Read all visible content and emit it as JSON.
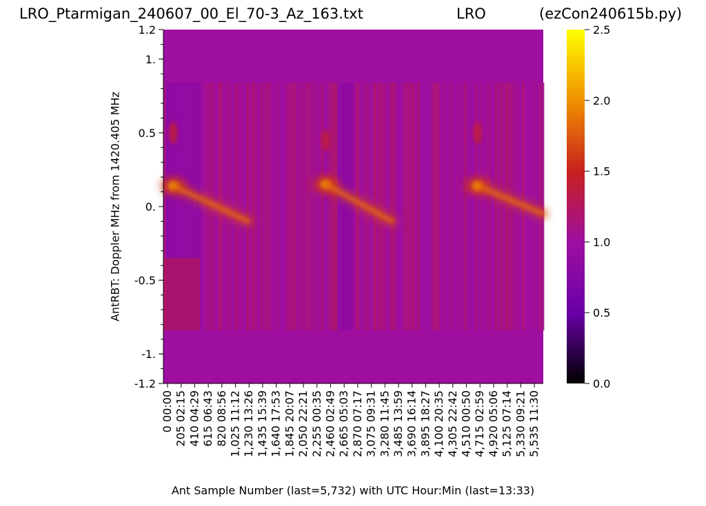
{
  "header": {
    "left": "LRO_Ptarmigan_240607_00_El_70-3_Az_163.txt",
    "center": "LRO",
    "right": "(ezCon240615b.py)"
  },
  "chart_data": {
    "type": "heatmap",
    "xlabel": "Ant Sample Number (last=5,732) with UTC Hour:Min (last=13:33)",
    "ylabel": "AntRBT:  Doppler MHz from 1420.405 MHz",
    "ylim": [
      -1.2,
      1.2
    ],
    "y_ticks": [
      "1.2",
      "1.",
      "0.5",
      "0.",
      "-0.5",
      "-1.",
      "-1.2"
    ],
    "y_tick_values": [
      1.2,
      1.0,
      0.5,
      0.0,
      -0.5,
      -1.0,
      -1.2
    ],
    "x_tick_samples": [
      "0",
      "205",
      "410",
      "615",
      "820",
      "1,025",
      "1,230",
      "1,435",
      "1,640",
      "1,845",
      "2,050",
      "2,255",
      "2,460",
      "2,665",
      "2,870",
      "3,075",
      "3,280",
      "3,485",
      "3,690",
      "3,895",
      "4,100",
      "4,305",
      "4,510",
      "4,715",
      "4,920",
      "5,125",
      "5,330",
      "5,535"
    ],
    "x_tick_times": [
      "00:00",
      "02:15",
      "04:29",
      "06:43",
      "08:56",
      "11:12",
      "13:26",
      "15:39",
      "17:53",
      "20:07",
      "22:21",
      "00:35",
      "02:49",
      "05:03",
      "07:17",
      "09:31",
      "11:45",
      "13:59",
      "16:14",
      "18:27",
      "20:35",
      "22:42",
      "00:50",
      "02:59",
      "05:06",
      "07:14",
      "09:21",
      "11:30"
    ],
    "x_last_sample": 5732,
    "colorbar": {
      "min": 0.0,
      "max": 2.5,
      "ticks": [
        "0.0",
        "0.5",
        "1.0",
        "1.5",
        "2.0",
        "2.5"
      ],
      "tick_values": [
        0.0,
        0.5,
        1.0,
        1.5,
        2.0,
        2.5
      ],
      "colormap": "gnuplot",
      "colors": [
        "#000000",
        "#6a00a8",
        "#9e0fa0",
        "#c8201e",
        "#f09000",
        "#ffff00"
      ]
    },
    "background_value": 1.0,
    "band_range_mhz": [
      -0.84,
      0.84
    ],
    "features": [
      {
        "kind": "bright_blob",
        "x_sample": 150,
        "y_mhz": 0.14,
        "value": 1.9
      },
      {
        "kind": "faint_blob",
        "x_sample": 150,
        "y_mhz": 0.5,
        "value": 1.4
      },
      {
        "kind": "diagonal_streak",
        "x_sample_start": 150,
        "y_start": 0.14,
        "x_sample_end": 1280,
        "y_end": -0.1,
        "value": 1.7
      },
      {
        "kind": "bright_blob",
        "x_sample": 2450,
        "y_mhz": 0.15,
        "value": 1.9
      },
      {
        "kind": "faint_blob",
        "x_sample": 2450,
        "y_mhz": 0.45,
        "value": 1.4
      },
      {
        "kind": "diagonal_streak",
        "x_sample_start": 2450,
        "y_start": 0.15,
        "x_sample_end": 3450,
        "y_end": -0.1,
        "value": 1.7
      },
      {
        "kind": "bright_blob",
        "x_sample": 4740,
        "y_mhz": 0.14,
        "value": 1.9
      },
      {
        "kind": "faint_blob",
        "x_sample": 4740,
        "y_mhz": 0.5,
        "value": 1.4
      },
      {
        "kind": "diagonal_streak",
        "x_sample_start": 4740,
        "y_start": 0.14,
        "x_sample_end": 5732,
        "y_end": -0.05,
        "value": 1.7
      }
    ]
  }
}
